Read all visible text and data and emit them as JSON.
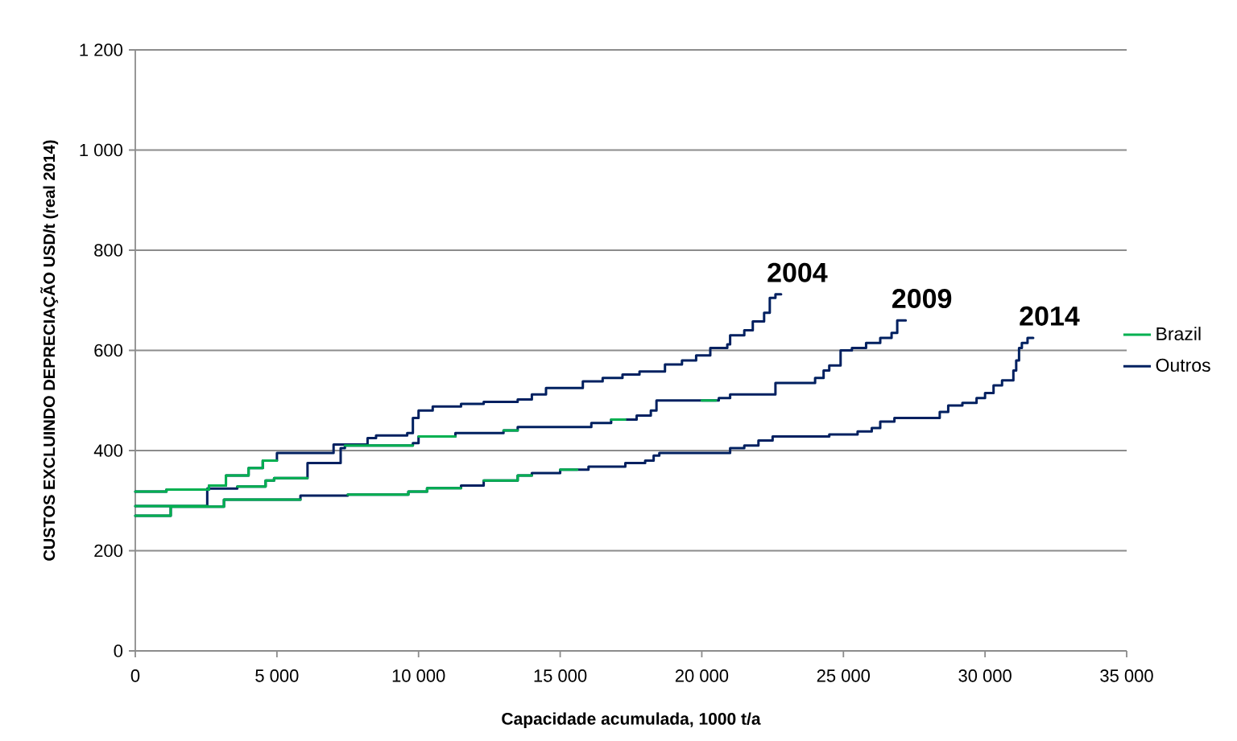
{
  "chart_data": {
    "type": "step",
    "xlabel": "Capacidade acumulada, 1000 t/a",
    "ylabel": "CUSTOS EXCLUINDO DEPRECIAÇÃO USD/t  (real  2014)",
    "xlim": [
      0,
      35000
    ],
    "ylim": [
      0,
      1200
    ],
    "xticks": [
      0,
      {
        "value": 5000,
        "label": "5  000"
      },
      {
        "value": 10000,
        "label": "10  000"
      },
      {
        "value": 15000,
        "label": "15  000"
      },
      {
        "value": 20000,
        "label": "20  000"
      },
      {
        "value": 25000,
        "label": "25  000"
      },
      {
        "value": 30000,
        "label": "30  000"
      },
      {
        "value": 35000,
        "label": "35  000"
      }
    ],
    "yticks": [
      0,
      200,
      400,
      600,
      800,
      {
        "value": 1000,
        "label": "1  000"
      },
      {
        "value": 1200,
        "label": "1  200"
      }
    ],
    "grid": "y",
    "legend": "right",
    "series": [
      {
        "name": "Outros",
        "color": "#002060",
        "x": [
          0,
          1100,
          2600,
          3200,
          4000,
          4500,
          5000,
          7000,
          8200,
          8500,
          9600,
          9800,
          10000,
          10500,
          11500,
          12300,
          13500,
          14000,
          14500,
          15800,
          16500,
          17200,
          17800,
          18700,
          19300,
          19800,
          20300,
          20900,
          21000,
          21500,
          21800,
          22200,
          22400,
          22600,
          22800
        ],
        "values": [
          318,
          322,
          330,
          350,
          365,
          380,
          395,
          412,
          425,
          430,
          435,
          465,
          480,
          488,
          493,
          497,
          502,
          512,
          525,
          538,
          545,
          552,
          558,
          572,
          580,
          590,
          605,
          612,
          630,
          640,
          658,
          675,
          705,
          712,
          712
        ]
      },
      {
        "color": "#002060",
        "x": [
          0,
          2540,
          3600,
          4600,
          4900,
          6080,
          7250,
          7400,
          9800,
          10000,
          11300,
          13000,
          13500,
          16100,
          16800,
          17700,
          18200,
          18400,
          20600,
          21000,
          22600,
          24000,
          24300,
          24500,
          24900,
          25300,
          25800,
          26300,
          26700,
          26900,
          27200
        ],
        "values": [
          289,
          324,
          328,
          340,
          345,
          375,
          405,
          410,
          415,
          428,
          435,
          440,
          447,
          455,
          462,
          470,
          480,
          500,
          505,
          512,
          535,
          545,
          560,
          570,
          600,
          605,
          615,
          625,
          635,
          660,
          660
        ]
      },
      {
        "color": "#002060",
        "x": [
          0,
          1250,
          3130,
          5830,
          7500,
          9640,
          10300,
          11500,
          12300,
          13500,
          14000,
          15000,
          16000,
          17300,
          18000,
          18300,
          18500,
          21000,
          21500,
          22000,
          22500,
          24500,
          25500,
          26000,
          26300,
          26800,
          28400,
          28700,
          29200,
          29700,
          30000,
          30300,
          30600,
          31000,
          31100,
          31200,
          31300,
          31500,
          31700
        ],
        "values": [
          270,
          288,
          302,
          310,
          312,
          318,
          325,
          330,
          340,
          350,
          355,
          362,
          368,
          375,
          380,
          390,
          395,
          405,
          410,
          420,
          428,
          432,
          438,
          445,
          458,
          465,
          477,
          490,
          495,
          505,
          515,
          530,
          540,
          560,
          580,
          605,
          615,
          625,
          625
        ]
      },
      {
        "name": "Brazil",
        "color": "#00b050",
        "x": [
          0,
          1100,
          2600,
          3200,
          4000,
          4500,
          5000
        ],
        "values": [
          318,
          322,
          330,
          350,
          365,
          380,
          380
        ]
      },
      {
        "color": "#00b050",
        "x": [
          0,
          2540
        ],
        "values": [
          289,
          289
        ]
      },
      {
        "color": "#00b050",
        "x": [
          3600,
          4600,
          4900,
          6080
        ],
        "values": [
          328,
          340,
          345,
          345
        ]
      },
      {
        "color": "#00b050",
        "x": [
          7400,
          9800
        ],
        "values": [
          410,
          410
        ]
      },
      {
        "color": "#00b050",
        "x": [
          10000,
          11300
        ],
        "values": [
          428,
          428
        ]
      },
      {
        "color": "#00b050",
        "x": [
          13000,
          13500
        ],
        "values": [
          440,
          440
        ]
      },
      {
        "color": "#00b050",
        "x": [
          16800,
          17300
        ],
        "values": [
          462,
          462
        ]
      },
      {
        "color": "#00b050",
        "x": [
          20000,
          20500
        ],
        "values": [
          500,
          500
        ]
      },
      {
        "color": "#00b050",
        "x": [
          0,
          1250,
          3130,
          5830
        ],
        "values": [
          270,
          288,
          302,
          302
        ]
      },
      {
        "color": "#00b050",
        "x": [
          7500,
          9640,
          10300,
          11500
        ],
        "values": [
          312,
          318,
          325,
          325
        ]
      },
      {
        "color": "#00b050",
        "x": [
          12300,
          13500,
          14000
        ],
        "values": [
          340,
          350,
          350
        ]
      },
      {
        "color": "#00b050",
        "x": [
          15000,
          15600
        ],
        "values": [
          362,
          362
        ]
      }
    ],
    "annotations": [
      {
        "text": "2004",
        "x": 22800,
        "y": 712
      },
      {
        "text": "2009",
        "x": 27200,
        "y": 660
      },
      {
        "text": "2014",
        "x": 31700,
        "y": 625
      }
    ]
  }
}
